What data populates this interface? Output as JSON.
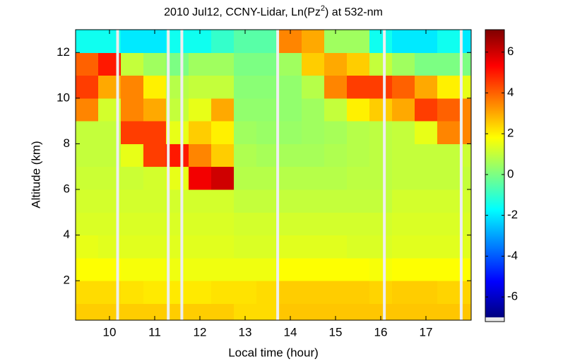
{
  "chart_data": {
    "type": "heatmap",
    "title": [
      "2010 Jul12, CCNY-Lidar, Ln(Pz",
      "2",
      ") at 532-nm"
    ],
    "x_label": "Local time (hour)",
    "y_label": "Altitude (km)",
    "colormap": "jet",
    "xlim": [
      9.25,
      18.0
    ],
    "ylim": [
      0.27,
      13.0
    ],
    "xticks": [
      10,
      11,
      12,
      13,
      14,
      15,
      16,
      17
    ],
    "yticks": [
      2,
      4,
      6,
      8,
      10,
      12
    ],
    "clim": [
      -7.0,
      7.1
    ],
    "cticks": [
      -6,
      -4,
      -2,
      0,
      2,
      4,
      6
    ],
    "gaps": [
      10.18,
      11.3,
      11.6,
      13.72,
      16.08,
      17.78
    ],
    "x_edges": [
      9.25,
      9.75,
      10.25,
      10.75,
      11.25,
      11.75,
      12.25,
      12.75,
      13.25,
      13.75,
      14.25,
      14.75,
      15.25,
      15.75,
      16.25,
      16.75,
      17.25,
      17.75,
      18.0
    ],
    "y_edges": [
      0.27,
      1,
      2,
      3,
      4,
      5,
      6,
      7,
      8,
      9,
      10,
      11,
      12,
      13
    ],
    "z": [
      [
        2.5,
        2.5,
        2.5,
        2.5,
        2.5,
        2.5,
        2.5,
        2.3,
        2.3,
        2.6,
        2.6,
        2.6,
        2.6,
        2.6,
        2.6,
        2.6,
        2.6,
        2.6
      ],
      [
        2.3,
        2.3,
        2.2,
        2.1,
        2.1,
        2.1,
        2.2,
        2.2,
        2.3,
        2.5,
        2.5,
        2.5,
        2.5,
        2.4,
        2.5,
        2.5,
        2.4,
        2.4
      ],
      [
        1.8,
        1.8,
        1.7,
        1.7,
        1.6,
        1.6,
        1.6,
        1.6,
        1.6,
        1.8,
        1.8,
        1.8,
        1.8,
        1.7,
        1.8,
        1.8,
        1.8,
        1.8
      ],
      [
        1.5,
        1.4,
        1.4,
        1.4,
        1.4,
        1.4,
        1.4,
        1.3,
        1.3,
        1.4,
        1.4,
        1.4,
        1.3,
        1.3,
        1.4,
        1.4,
        1.4,
        1.4
      ],
      [
        1.3,
        1.3,
        1.3,
        1.3,
        1.3,
        1.3,
        1.3,
        1.2,
        1.2,
        1.2,
        1.2,
        1.2,
        1.2,
        1.2,
        1.3,
        1.3,
        1.3,
        1.3
      ],
      [
        1.2,
        1.2,
        1.2,
        1.2,
        1.2,
        1.2,
        1.2,
        1.0,
        1.0,
        1.0,
        1.0,
        1.0,
        1.0,
        1.0,
        1.2,
        1.2,
        1.2,
        1.2
      ],
      [
        1.1,
        1.1,
        1.1,
        1.2,
        1.5,
        5.5,
        6.0,
        0.8,
        0.8,
        0.8,
        0.8,
        0.8,
        0.9,
        0.9,
        1.0,
        1.0,
        1.0,
        1.0
      ],
      [
        1.0,
        1.0,
        1.5,
        4.5,
        5.0,
        3.5,
        2.5,
        0.7,
        0.6,
        0.6,
        0.6,
        0.7,
        0.8,
        0.9,
        1.0,
        1.0,
        1.0,
        1.1
      ],
      [
        1.0,
        1.0,
        4.5,
        4.5,
        1.5,
        2.5,
        2.0,
        0.5,
        0.4,
        0.4,
        0.5,
        0.6,
        0.8,
        0.9,
        1.0,
        1.5,
        3.5,
        3.5
      ],
      [
        3.5,
        1.2,
        3.5,
        3.0,
        1.0,
        1.5,
        3.0,
        0.3,
        0.3,
        0.3,
        0.5,
        1.0,
        2.0,
        2.5,
        3.0,
        4.5,
        4.0,
        3.5
      ],
      [
        4.5,
        3.0,
        3.5,
        2.0,
        0.8,
        1.0,
        1.0,
        0.2,
        0.2,
        0.3,
        0.8,
        3.5,
        4.5,
        4.5,
        4.0,
        3.0,
        2.0,
        1.5
      ],
      [
        4.0,
        5.0,
        1.0,
        0.5,
        0.0,
        0.5,
        0.5,
        0.0,
        0.0,
        0.5,
        2.5,
        3.0,
        2.5,
        1.0,
        0.5,
        0.0,
        0.0,
        0.0
      ],
      [
        -1.5,
        -1.5,
        -2.0,
        -2.0,
        -1.5,
        -1.5,
        -1.0,
        -0.5,
        -0.5,
        3.5,
        3.0,
        0.5,
        0.5,
        -1.5,
        -2.0,
        -2.0,
        -1.5,
        -2.0
      ]
    ]
  }
}
